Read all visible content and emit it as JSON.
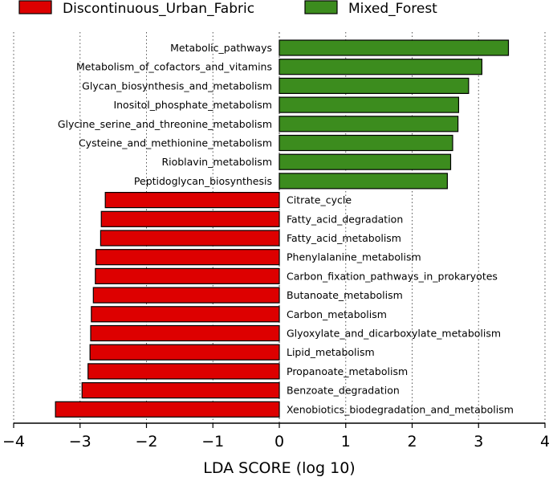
{
  "chart_data": {
    "type": "bar",
    "orientation": "horizontal",
    "xlabel": "LDA SCORE (log 10)",
    "xlim": [
      -4,
      4
    ],
    "xticks": [
      "−4",
      "−3",
      "−2",
      "−1",
      "0",
      "1",
      "2",
      "3",
      "4"
    ],
    "grid": "vertical-dotted",
    "legend_position": "top",
    "series": [
      {
        "name": "Discontinuous_Urban_Fabric",
        "color": "#dd0000"
      },
      {
        "name": "Mixed_Forest",
        "color": "#3c8c1e"
      }
    ],
    "bars": [
      {
        "label": "Metabolic_pathways",
        "value": 3.45,
        "series": 1
      },
      {
        "label": "Metabolism_of_cofactors_and_vitamins",
        "value": 3.05,
        "series": 1
      },
      {
        "label": "Glycan_biosynthesis_and_metabolism",
        "value": 2.85,
        "series": 1
      },
      {
        "label": "Inositol_phosphate_metabolism",
        "value": 2.7,
        "series": 1
      },
      {
        "label": "Glycine_serine_and_threonine_metabolism",
        "value": 2.69,
        "series": 1
      },
      {
        "label": "Cysteine_and_methionine_metabolism",
        "value": 2.61,
        "series": 1
      },
      {
        "label": "Rioblavin_metabolism",
        "value": 2.58,
        "series": 1
      },
      {
        "label": "Peptidoglycan_biosynthesis",
        "value": 2.53,
        "series": 1
      },
      {
        "label": "Citrate_cycle",
        "value": -2.62,
        "series": 0
      },
      {
        "label": "Fatty_acid_degradation",
        "value": -2.68,
        "series": 0
      },
      {
        "label": "Fatty_acid_metabolism",
        "value": -2.69,
        "series": 0
      },
      {
        "label": "Phenylalanine_metabolism",
        "value": -2.76,
        "series": 0
      },
      {
        "label": "Carbon_fixation_pathways_in_prokaryotes",
        "value": -2.77,
        "series": 0
      },
      {
        "label": "Butanoate_metabolism",
        "value": -2.8,
        "series": 0
      },
      {
        "label": "Carbon_metabolism",
        "value": -2.83,
        "series": 0
      },
      {
        "label": "Glyoxylate_and_dicarboxylate_metabolism",
        "value": -2.84,
        "series": 0
      },
      {
        "label": "Lipid_metabolism",
        "value": -2.85,
        "series": 0
      },
      {
        "label": "Propanoate_metabolism",
        "value": -2.88,
        "series": 0
      },
      {
        "label": "Benzoate_degradation",
        "value": -2.97,
        "series": 0
      },
      {
        "label": "Xenobiotics_biodegradation_and_metabolism",
        "value": -3.37,
        "series": 0
      }
    ]
  }
}
